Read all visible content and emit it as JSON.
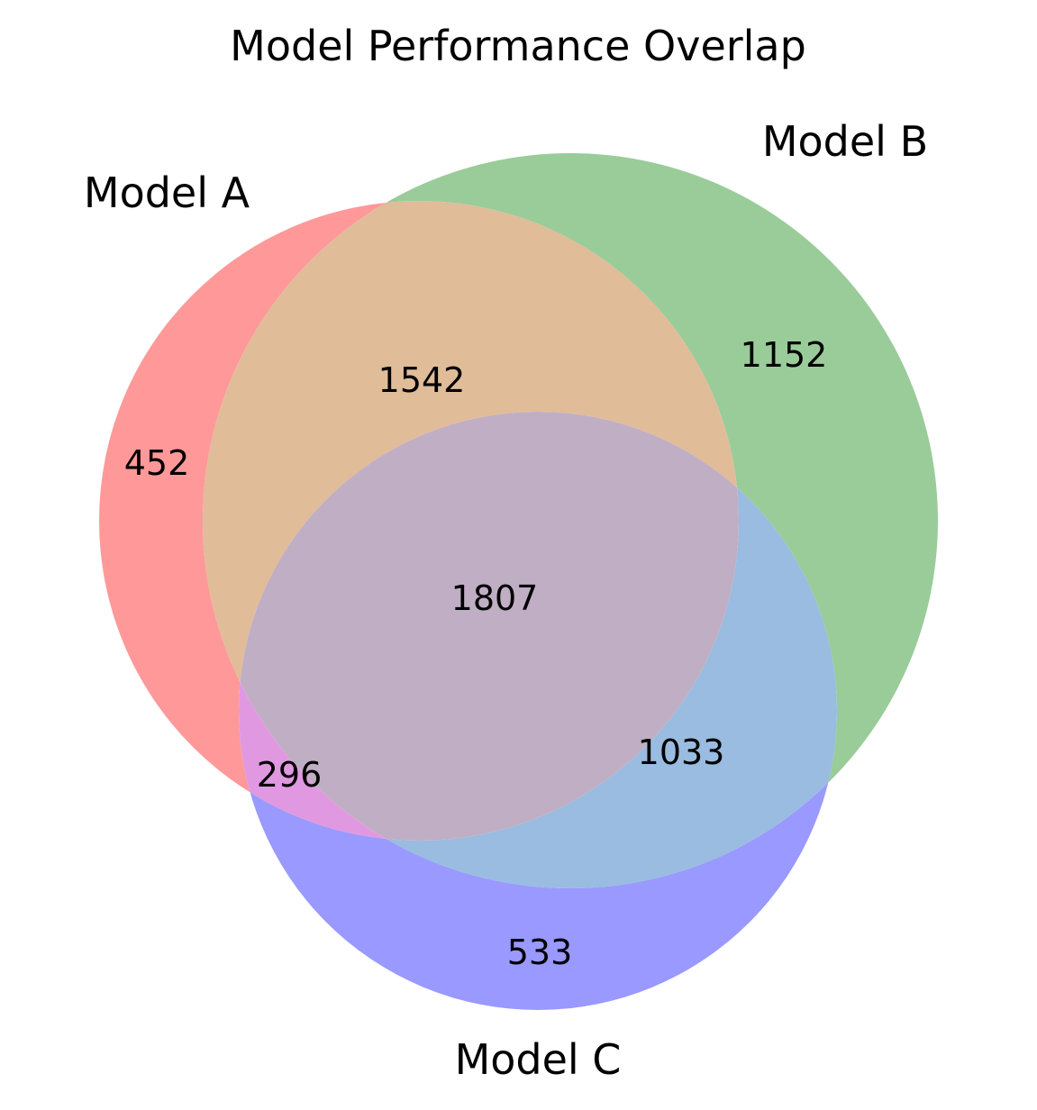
{
  "title": "Model Performance Overlap",
  "sets": [
    {
      "key": "A",
      "name": "Model A",
      "color": "#ff9999"
    },
    {
      "key": "B",
      "name": "Model B",
      "color": "#99cc99"
    },
    {
      "key": "C",
      "name": "Model C",
      "color": "#9999ff"
    }
  ],
  "regions": {
    "A_only": "452",
    "B_only": "1152",
    "C_only": "533",
    "AB": "1542",
    "AC": "296",
    "BC": "1033",
    "ABC": "1807"
  },
  "region_colors": {
    "A_only": "#ff9999",
    "B_only": "#99cc99",
    "C_only": "#9999ff",
    "AB": "#e0bc99",
    "AC": "#e099e0",
    "BC": "#99bce0",
    "ABC": "#c0aec4"
  }
}
